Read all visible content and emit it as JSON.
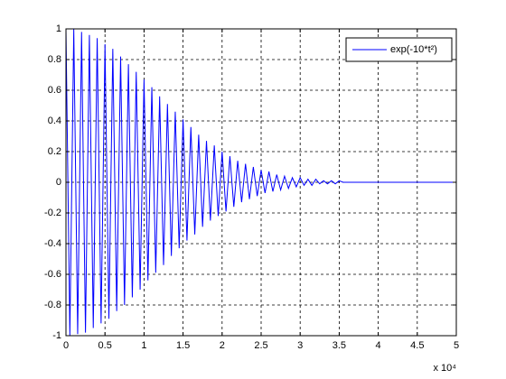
{
  "chart_data": {
    "type": "line",
    "x": [
      0,
      500,
      1000,
      1500,
      2000,
      2500,
      3000,
      3500,
      4000,
      4500,
      5000,
      5500,
      6000,
      6500,
      7000,
      7500,
      8000,
      8500,
      9000,
      9500,
      10000,
      10500,
      11000,
      11500,
      12000,
      12500,
      13000,
      13500,
      14000,
      14500,
      15000,
      15500,
      16000,
      16500,
      17000,
      17500,
      18000,
      18500,
      19000,
      19500,
      20000,
      20500,
      21000,
      21500,
      22000,
      22500,
      23000,
      23500,
      24000,
      24500,
      25000,
      25500,
      26000,
      26500,
      27000,
      27500,
      28000,
      28500,
      29000,
      29500,
      30000,
      30500,
      31000,
      31500,
      32000,
      32500,
      33000,
      33500,
      34000,
      34500,
      35000,
      35500,
      36000,
      36500,
      37000,
      37500,
      38000,
      38500,
      39000,
      39500,
      40000,
      40500,
      41000,
      41500,
      42000,
      42500,
      43000,
      43500,
      44000,
      44500,
      45000,
      45500,
      46000,
      46500,
      47000,
      47500,
      48000,
      48500,
      49000,
      49500,
      50000
    ],
    "series": [
      {
        "name": "exp(-10*t²)",
        "color": "#0000ff",
        "values": [
          1,
          -1,
          1,
          -0.99,
          0.98,
          -0.98,
          0.96,
          -0.95,
          0.94,
          -0.92,
          0.9,
          -0.89,
          0.87,
          -0.84,
          0.82,
          -0.8,
          0.77,
          -0.75,
          0.72,
          -0.7,
          0.67,
          -0.64,
          0.62,
          -0.59,
          0.56,
          -0.54,
          0.51,
          -0.48,
          0.46,
          -0.43,
          0.41,
          -0.38,
          0.36,
          -0.34,
          0.31,
          -0.29,
          0.27,
          -0.25,
          0.24,
          -0.22,
          0.2,
          -0.19,
          0.17,
          -0.16,
          0.14,
          -0.13,
          0.12,
          -0.11,
          0.1,
          -0.09,
          0.08,
          -0.07,
          0.07,
          -0.06,
          0.05,
          -0.05,
          0.04,
          -0.04,
          0.03,
          -0.03,
          0.03,
          -0.02,
          0.02,
          -0.02,
          0.02,
          -0.01,
          0.01,
          -0.01,
          0.01,
          -0.01,
          0.01,
          0,
          0,
          0,
          0,
          0,
          0,
          0,
          0,
          0,
          0,
          0,
          0,
          0,
          0,
          0,
          0,
          0,
          0,
          0,
          0,
          0,
          0,
          0,
          0,
          0,
          0,
          0,
          0,
          0,
          0
        ]
      }
    ],
    "xlim": [
      0,
      50000
    ],
    "xticks": [
      {
        "value": 0,
        "label": "0"
      },
      {
        "value": 5000,
        "label": "0.5"
      },
      {
        "value": 10000,
        "label": "1"
      },
      {
        "value": 15000,
        "label": "1.5"
      },
      {
        "value": 20000,
        "label": "2"
      },
      {
        "value": 25000,
        "label": "2.5"
      },
      {
        "value": 30000,
        "label": "3"
      },
      {
        "value": 35000,
        "label": "3.5"
      },
      {
        "value": 40000,
        "label": "4"
      },
      {
        "value": 45000,
        "label": "4.5"
      },
      {
        "value": 50000,
        "label": "5"
      }
    ],
    "x_multiplier": "x 10⁴",
    "ylim": [
      -1,
      1
    ],
    "yticks": [
      -1,
      -0.8,
      -0.6,
      -0.4,
      -0.2,
      0,
      0.2,
      0.4,
      0.6,
      0.8,
      1
    ],
    "grid": true,
    "legend": "upper right"
  }
}
